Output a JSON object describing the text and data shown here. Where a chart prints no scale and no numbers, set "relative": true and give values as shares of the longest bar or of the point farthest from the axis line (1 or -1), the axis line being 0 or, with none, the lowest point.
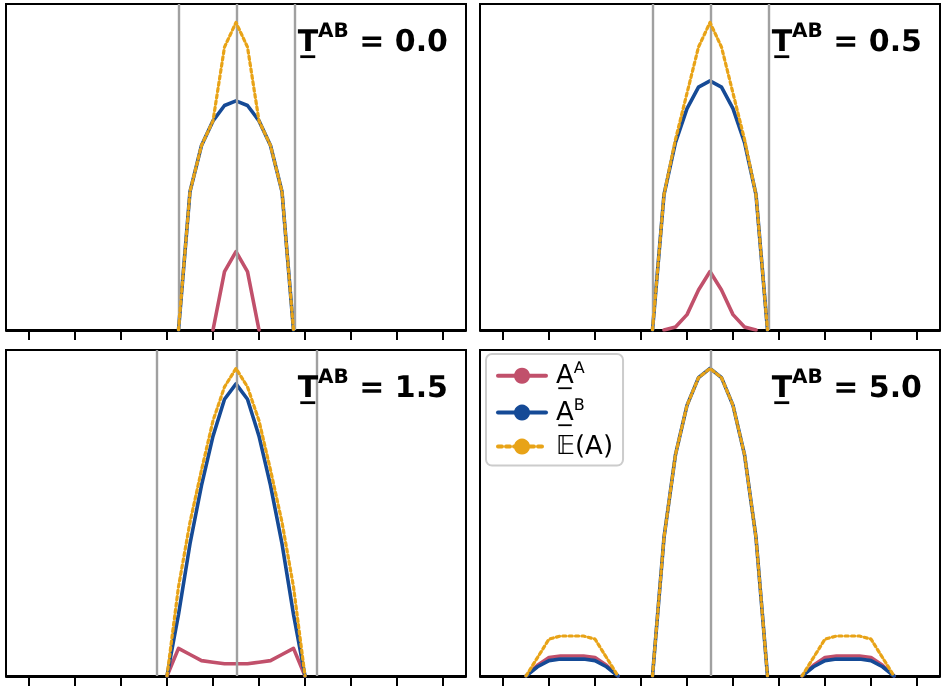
{
  "chart_data": [
    {
      "type": "line",
      "title": "T̲$^{AB}$ = 0.0",
      "relative": true,
      "legend": false,
      "grid": "x",
      "categories": [
        null,
        null,
        null,
        null,
        null,
        null,
        null,
        null,
        null,
        null,
        null,
        null,
        null,
        null,
        null,
        null,
        null,
        null,
        null,
        null,
        null,
        null,
        null,
        null,
        null,
        null,
        null,
        null,
        null,
        null,
        null,
        null,
        null,
        null,
        null,
        null,
        null,
        null,
        null,
        null,
        null
      ],
      "series": [
        {
          "color": "#c1506b",
          "line_style": "solid",
          "values": [
            null,
            null,
            null,
            null,
            null,
            null,
            null,
            null,
            null,
            null,
            null,
            null,
            null,
            null,
            null,
            null,
            null,
            null,
            0,
            0.19,
            0.255,
            0.19,
            0,
            null,
            null,
            null,
            null,
            null,
            null,
            null,
            null,
            null,
            null,
            null,
            null,
            null,
            null,
            null,
            null,
            null,
            null
          ]
        },
        {
          "color": "#154a96",
          "line_style": "solid",
          "values": [
            null,
            null,
            null,
            null,
            null,
            null,
            null,
            null,
            null,
            null,
            null,
            null,
            null,
            null,
            null,
            0,
            0.45,
            0.6,
            0.68,
            0.73,
            0.745,
            0.73,
            0.68,
            0.6,
            0.45,
            0,
            null,
            null,
            null,
            null,
            null,
            null,
            null,
            null,
            null,
            null,
            null,
            null,
            null,
            null,
            null
          ]
        },
        {
          "color": "#e8a317",
          "line_style": "dotted",
          "values": [
            null,
            null,
            null,
            null,
            null,
            null,
            null,
            null,
            null,
            null,
            null,
            null,
            null,
            null,
            null,
            0,
            0.45,
            0.6,
            0.68,
            0.92,
            1,
            0.92,
            0.68,
            0.6,
            0.45,
            0,
            null,
            null,
            null,
            null,
            null,
            null,
            null,
            null,
            null,
            null,
            null,
            null,
            null,
            null,
            null
          ]
        }
      ]
    },
    {
      "type": "line",
      "title": "T̲$^{AB}$ = 0.5",
      "relative": true,
      "legend": false,
      "grid": "x",
      "categories": [
        null,
        null,
        null,
        null,
        null,
        null,
        null,
        null,
        null,
        null,
        null,
        null,
        null,
        null,
        null,
        null,
        null,
        null,
        null,
        null,
        null,
        null,
        null,
        null,
        null,
        null,
        null,
        null,
        null,
        null,
        null,
        null,
        null,
        null,
        null,
        null,
        null,
        null,
        null,
        null,
        null
      ],
      "series": [
        {
          "color": "#c1506b",
          "line_style": "solid",
          "values": [
            null,
            null,
            null,
            null,
            null,
            null,
            null,
            null,
            null,
            null,
            null,
            null,
            null,
            null,
            null,
            null,
            0,
            0.01,
            0.05,
            0.13,
            0.19,
            0.13,
            0.05,
            0.01,
            0,
            null,
            null,
            null,
            null,
            null,
            null,
            null,
            null,
            null,
            null,
            null,
            null,
            null,
            null,
            null,
            null
          ]
        },
        {
          "color": "#154a96",
          "line_style": "solid",
          "values": [
            null,
            null,
            null,
            null,
            null,
            null,
            null,
            null,
            null,
            null,
            null,
            null,
            null,
            null,
            null,
            0,
            0.44,
            0.61,
            0.72,
            0.79,
            0.81,
            0.79,
            0.72,
            0.61,
            0.44,
            0,
            null,
            null,
            null,
            null,
            null,
            null,
            null,
            null,
            null,
            null,
            null,
            null,
            null,
            null,
            null
          ]
        },
        {
          "color": "#e8a317",
          "line_style": "dotted",
          "values": [
            null,
            null,
            null,
            null,
            null,
            null,
            null,
            null,
            null,
            null,
            null,
            null,
            null,
            null,
            null,
            0,
            0.44,
            0.62,
            0.77,
            0.92,
            1,
            0.92,
            0.77,
            0.62,
            0.44,
            0,
            null,
            null,
            null,
            null,
            null,
            null,
            null,
            null,
            null,
            null,
            null,
            null,
            null,
            null,
            null
          ]
        }
      ]
    },
    {
      "type": "line",
      "title": "T̲$^{AB}$ = 1.5",
      "relative": true,
      "legend": false,
      "grid": "x",
      "categories": [
        null,
        null,
        null,
        null,
        null,
        null,
        null,
        null,
        null,
        null,
        null,
        null,
        null,
        null,
        null,
        null,
        null,
        null,
        null,
        null,
        null,
        null,
        null,
        null,
        null,
        null,
        null,
        null,
        null,
        null,
        null,
        null,
        null,
        null,
        null,
        null,
        null,
        null,
        null,
        null,
        null
      ],
      "series": [
        {
          "color": "#c1506b",
          "line_style": "solid",
          "values": [
            null,
            null,
            null,
            null,
            null,
            null,
            null,
            null,
            null,
            null,
            null,
            null,
            null,
            null,
            0,
            0.09,
            0.07,
            0.05,
            0.045,
            0.04,
            0.04,
            0.04,
            0.045,
            0.05,
            0.07,
            0.09,
            0,
            null,
            null,
            null,
            null,
            null,
            null,
            null,
            null,
            null,
            null,
            null,
            null,
            null,
            null
          ]
        },
        {
          "color": "#154a96",
          "line_style": "solid",
          "values": [
            null,
            null,
            null,
            null,
            null,
            null,
            null,
            null,
            null,
            null,
            null,
            null,
            null,
            null,
            0,
            0.2,
            0.43,
            0.62,
            0.78,
            0.9,
            0.95,
            0.9,
            0.78,
            0.62,
            0.43,
            0.2,
            0,
            null,
            null,
            null,
            null,
            null,
            null,
            null,
            null,
            null,
            null,
            null,
            null,
            null,
            null
          ]
        },
        {
          "color": "#e8a317",
          "line_style": "dotted",
          "values": [
            null,
            null,
            null,
            null,
            null,
            null,
            null,
            null,
            null,
            null,
            null,
            null,
            null,
            null,
            0,
            0.29,
            0.5,
            0.67,
            0.83,
            0.94,
            1,
            0.94,
            0.83,
            0.67,
            0.5,
            0.29,
            0,
            null,
            null,
            null,
            null,
            null,
            null,
            null,
            null,
            null,
            null,
            null,
            null,
            null,
            null
          ]
        }
      ]
    },
    {
      "type": "line",
      "title": "T̲$^{AB}$ = 5.0",
      "relative": true,
      "legend": "top left",
      "grid": "x",
      "categories": [
        null,
        null,
        null,
        null,
        null,
        null,
        null,
        null,
        null,
        null,
        null,
        null,
        null,
        null,
        null,
        null,
        null,
        null,
        null,
        null,
        null,
        null,
        null,
        null,
        null,
        null,
        null,
        null,
        null,
        null,
        null,
        null,
        null,
        null,
        null,
        null,
        null,
        null,
        null,
        null,
        null
      ],
      "series": [
        {
          "name": "A̲$^{A}$",
          "color": "#c1506b",
          "line_style": "solid",
          "values": [
            null,
            null,
            null,
            null,
            0,
            0.035,
            0.06,
            0.065,
            0.065,
            0.065,
            0.06,
            0.035,
            0,
            null,
            null,
            null,
            null,
            null,
            null,
            null,
            null,
            null,
            null,
            null,
            null,
            null,
            null,
            null,
            0,
            0.035,
            0.06,
            0.065,
            0.065,
            0.065,
            0.06,
            0.035,
            0,
            null,
            null,
            null,
            null
          ]
        },
        {
          "name": "A̲$^{B}$",
          "color": "#154a96",
          "line_style": "solid",
          "values": [
            null,
            null,
            null,
            null,
            0,
            0.03,
            0.05,
            0.055,
            0.055,
            0.055,
            0.05,
            0.03,
            0,
            null,
            null,
            0,
            0.45,
            0.72,
            0.88,
            0.97,
            1,
            0.97,
            0.88,
            0.72,
            0.45,
            0,
            null,
            null,
            0,
            0.03,
            0.05,
            0.055,
            0.055,
            0.055,
            0.05,
            0.03,
            0,
            null,
            null,
            null,
            null
          ]
        },
        {
          "name": "𝔼(A)",
          "color": "#e8a317",
          "line_style": "dotted",
          "values": [
            null,
            null,
            null,
            null,
            0,
            0.06,
            0.12,
            0.13,
            0.13,
            0.13,
            0.12,
            0.06,
            0,
            null,
            null,
            0,
            0.45,
            0.72,
            0.88,
            0.97,
            1,
            0.97,
            0.88,
            0.72,
            0.45,
            0,
            null,
            null,
            0,
            0.06,
            0.12,
            0.13,
            0.13,
            0.13,
            0.12,
            0.06,
            0,
            null,
            null,
            null,
            null
          ]
        }
      ]
    }
  ]
}
